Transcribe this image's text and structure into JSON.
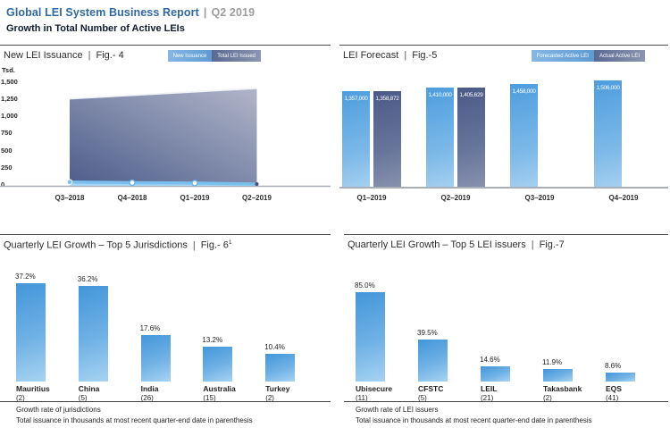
{
  "page": {
    "title": "Global LEI System Business Report",
    "sep": "|",
    "period": "Q2 2019",
    "subtitle": "Growth in Total Number of Active LEIs"
  },
  "colors": {
    "accent_blue": "#30699f",
    "muted_gray": "#9d9d9d",
    "light_blue_bar": "#4d9dde",
    "pale_blue": "#a5cff0",
    "slate_blue": "#4b5a87",
    "slate_pale": "#8791ad",
    "axis_gray": "#a9aeb6",
    "text_dark": "#1f1f1f"
  },
  "panels": [
    {
      "name": "New LEI Issuance",
      "fig": "Fig.- 4",
      "legend": [
        {
          "label": "New Issuance"
        },
        {
          "label": "Total LEI Issued"
        }
      ]
    },
    {
      "name": "LEI Forecast",
      "fig": "Fig.-5",
      "legend": [
        {
          "label": "Forecasted Active LEI"
        },
        {
          "label": "Actual Active LEI"
        }
      ]
    },
    {
      "name": "Quarterly LEI Growth – Top 5 Jurisdictions",
      "fig": "Fig.- 6",
      "fig_sup": "1"
    },
    {
      "name": "Quarterly LEI Growth – Top 5 LEI issuers",
      "fig": "Fig.-7"
    }
  ],
  "chart_data": [
    {
      "type": "area",
      "title": "New LEI Issuance | Fig.- 4",
      "ylabel": "Tsd.",
      "yticks": [
        "1,500",
        "1,250",
        "1,000",
        "750",
        "500",
        "250",
        "0"
      ],
      "ylim": [
        0,
        1500
      ],
      "categories": [
        "Q3–2018",
        "Q4–2018",
        "Q1–2019",
        "Q2–2019"
      ],
      "series": [
        {
          "name": "New Issuance",
          "type": "line",
          "values": [
            55,
            45,
            40,
            25
          ]
        },
        {
          "name": "Total LEI Issued",
          "type": "area",
          "values": [
            1250,
            1300,
            1350,
            1400
          ]
        }
      ],
      "legend_position": "top-right",
      "grid": false
    },
    {
      "type": "bar",
      "title": "LEI Forecast | Fig.-5",
      "categories": [
        "Q1–2019",
        "Q2–2019",
        "Q3–2019",
        "Q4–2019"
      ],
      "series": [
        {
          "name": "Forecasted Active LEI",
          "values": [
            1357000,
            1410000,
            1458000,
            1506000
          ],
          "labels": [
            "1,357,000",
            "1,410,000",
            "1,458,000",
            "1,506,000"
          ]
        },
        {
          "name": "Actual Active LEI",
          "values": [
            1358872,
            1405629,
            null,
            null
          ],
          "labels": [
            "1,358,872",
            "1,405,629",
            null,
            null
          ]
        }
      ],
      "ylim": [
        0,
        1506000
      ],
      "legend_position": "top-right",
      "grid": false
    },
    {
      "type": "bar",
      "title": "Quarterly LEI Growth – Top 5 Jurisdictions | Fig.- 6¹",
      "categories": [
        "Mauritius",
        "China",
        "India",
        "Australia",
        "Turkey"
      ],
      "counts": [
        "(2)",
        "(5)",
        "(26)",
        "(15)",
        "(2)"
      ],
      "values": [
        37.2,
        36.2,
        17.6,
        13.2,
        10.4
      ],
      "labels": [
        "37.2%",
        "36.2%",
        "17.6%",
        "13.2%",
        "10.4%"
      ],
      "ylim": [
        0,
        40
      ],
      "grid": false,
      "notes": [
        "Growth rate of jurisdictions",
        "Total issuance in thousands at most recent quarter-end date in parenthesis"
      ]
    },
    {
      "type": "bar",
      "title": "Quarterly LEI Growth – Top 5 LEI issuers | Fig.-7",
      "categories": [
        "Ubisecure",
        "CFSTC",
        "LEIL",
        "Takasbank",
        "EQS"
      ],
      "counts": [
        "(11)",
        "(5)",
        "(21)",
        "(2)",
        "(41)"
      ],
      "values": [
        85.0,
        39.5,
        14.6,
        11.9,
        8.6
      ],
      "labels": [
        "85.0%",
        "39.5%",
        "14.6%",
        "11.9%",
        "8.6%"
      ],
      "ylim": [
        0,
        100
      ],
      "grid": false,
      "notes": [
        "Growth rate of LEI issuers",
        "Total issuance in thousands at most recent quarter-end date in parenthesis"
      ]
    }
  ]
}
